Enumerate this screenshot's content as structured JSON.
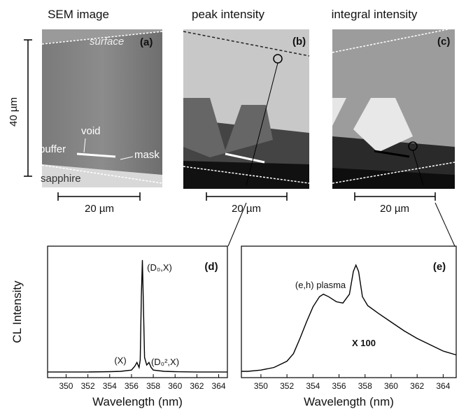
{
  "vertical_scale_bar": "40 µm",
  "panels": [
    {
      "title": "SEM image",
      "label": "(a)",
      "scale_bar": "20 µm",
      "annotations": [
        "surface",
        "void",
        "buffer",
        "mask",
        "sapphire"
      ]
    },
    {
      "title": "peak intensity",
      "label": "(b)",
      "scale_bar": "20 µm"
    },
    {
      "title": "integral intensity",
      "label": "(c)",
      "scale_bar": "20 µm"
    }
  ],
  "chart_data": [
    {
      "type": "line",
      "ylabel": "CL Intensity",
      "xlabel": "Wavelength (nm)",
      "label": "(d)",
      "annotations": [
        "(D₀,X)",
        "(X)",
        "(D₀²,X)"
      ],
      "xlim": [
        348.3,
        364.8
      ],
      "ylim": [
        -4,
        100
      ],
      "xticks": [
        350,
        352,
        354,
        356,
        358,
        360,
        362,
        364
      ],
      "x": [
        348.3,
        350,
        352,
        354,
        355,
        356,
        356.3,
        356.5,
        356.7,
        356.8,
        356.9,
        357.0,
        357.1,
        357.2,
        357.4,
        357.6,
        357.8,
        358,
        359,
        360,
        362,
        364,
        364.8
      ],
      "values": [
        0.5,
        0.5,
        0.5,
        0.7,
        1,
        2,
        5,
        8,
        4,
        10,
        60,
        89,
        50,
        12,
        6,
        8,
        4,
        2,
        1,
        0.7,
        0.5,
        0.5,
        0.5
      ],
      "color": "#000000"
    },
    {
      "type": "line",
      "xlabel": "Wavelength (nm)",
      "label": "(e)",
      "annotations": [
        "(e,h) plasma",
        "X 100"
      ],
      "xlim": [
        348.5,
        365
      ],
      "ylim": [
        -4,
        100
      ],
      "xticks": [
        350,
        352,
        354,
        356,
        358,
        360,
        362,
        364
      ],
      "x": [
        348.5,
        349,
        350,
        351,
        352,
        352.5,
        353,
        353.5,
        354,
        354.5,
        354.8,
        355.2,
        355.8,
        356.3,
        356.8,
        357.1,
        357.3,
        357.5,
        357.8,
        358.2,
        359,
        360,
        361,
        362,
        363,
        364,
        365
      ],
      "values": [
        1,
        1,
        2,
        4,
        9,
        15,
        27,
        40,
        52,
        60,
        62,
        60,
        56,
        55,
        62,
        80,
        85,
        80,
        60,
        53,
        47,
        40,
        33,
        27,
        22,
        17,
        14
      ],
      "color": "#000000"
    }
  ]
}
